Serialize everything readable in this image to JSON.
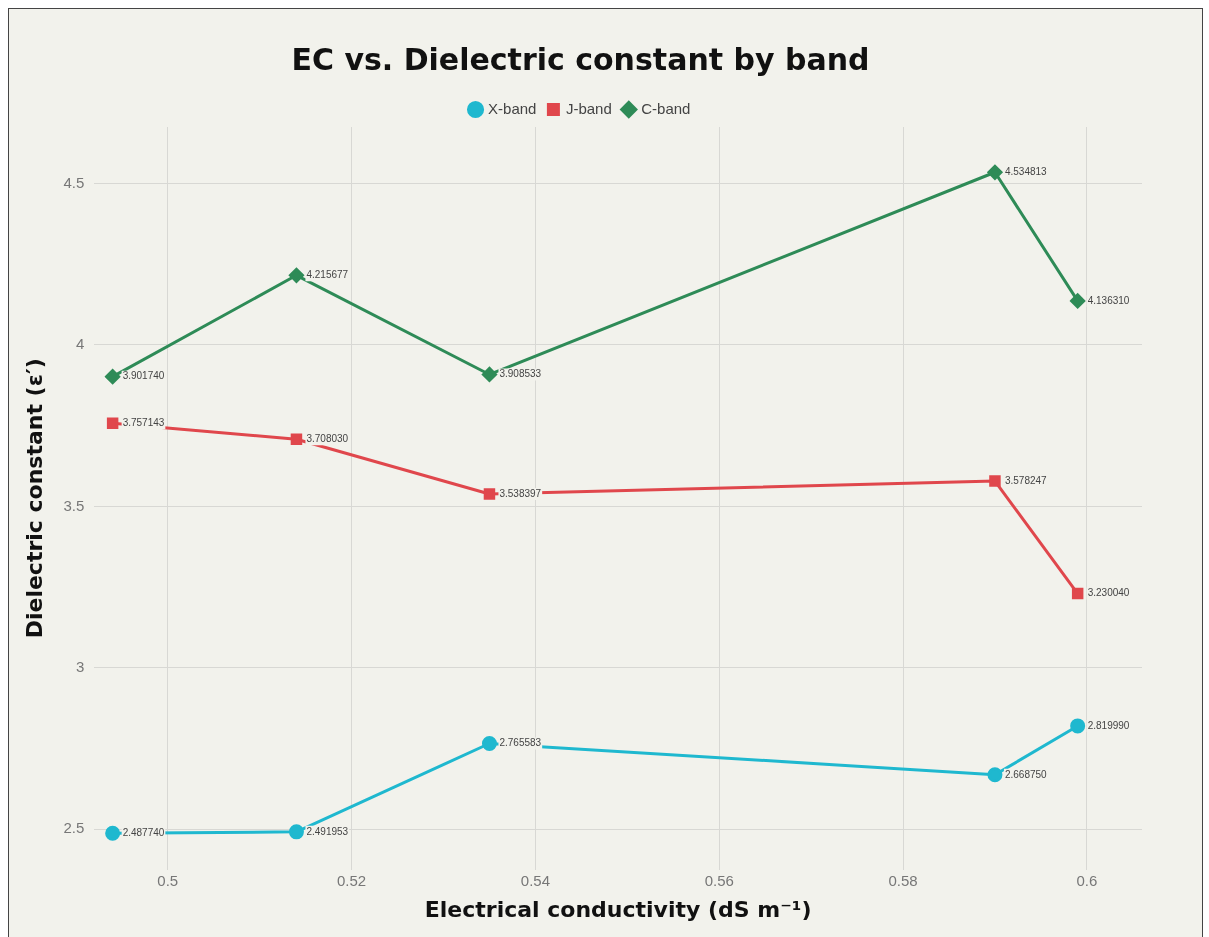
{
  "chart_data": {
    "type": "line",
    "title": "EC vs. Dielectric constant by band",
    "xlabel": "Electrical conductivity (dS m⁻¹)",
    "ylabel": "Dielectric constant (ε′)",
    "x": [
      0.494,
      0.514,
      0.535,
      0.59,
      0.599
    ],
    "series": [
      {
        "name": "X-band",
        "color": "#1fb8cf",
        "marker": "circle",
        "values": [
          2.48774,
          2.491953,
          2.765583,
          2.66875,
          2.81999
        ],
        "value_labels": [
          "2.487740",
          "2.491953",
          "2.765583",
          "2.668750",
          "2.819990"
        ]
      },
      {
        "name": "J-band",
        "color": "#e0474c",
        "marker": "square",
        "values": [
          3.757143,
          3.70803,
          3.538397,
          3.578247,
          3.23004
        ],
        "value_labels": [
          "3.757143",
          "3.708030",
          "3.538397",
          "3.578247",
          "3.230040"
        ]
      },
      {
        "name": "C-band",
        "color": "#2e8b57",
        "marker": "diamond",
        "values": [
          3.90174,
          4.215677,
          3.908533,
          4.534813,
          4.13631
        ],
        "value_labels": [
          "3.901740",
          "4.215677",
          "3.908533",
          "4.534813",
          "4.136310"
        ]
      }
    ],
    "xlim": [
      0.492,
      0.606
    ],
    "xticks": [
      0.5,
      0.52,
      0.54,
      0.56,
      0.58,
      0.6
    ],
    "ylim": [
      2.375,
      4.675
    ],
    "yticks": [
      2.5,
      3,
      3.5,
      4,
      4.5
    ],
    "grid": true,
    "legend": "top",
    "line_style": "solid"
  }
}
